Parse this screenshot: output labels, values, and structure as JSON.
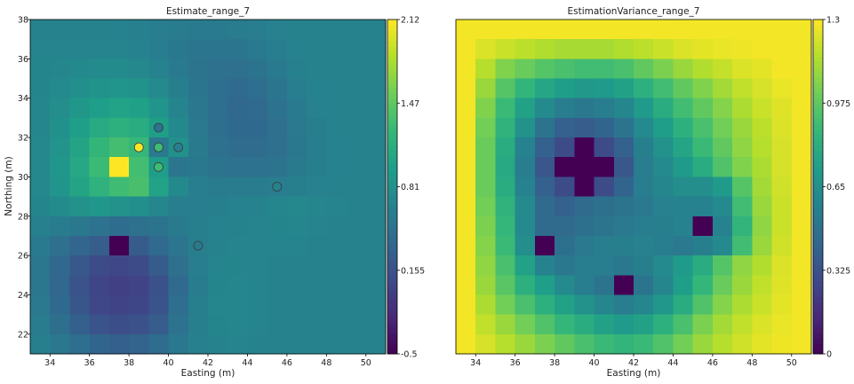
{
  "chart_data": [
    {
      "type": "heatmap",
      "title": "Estimate_range_7",
      "xlabel": "Easting (m)",
      "ylabel": "Northing (m)",
      "xlim": [
        33,
        51
      ],
      "ylim": [
        21,
        38
      ],
      "x_ticks": [
        "34",
        "36",
        "38",
        "40",
        "42",
        "44",
        "46",
        "48",
        "50"
      ],
      "y_ticks": [
        "22",
        "24",
        "26",
        "28",
        "30",
        "32",
        "34",
        "36",
        "38"
      ],
      "colorbar": {
        "min": -0.5,
        "max": 2.12,
        "ticks": [
          "2.12",
          "1.47",
          "0.81",
          "0.155",
          "-0.5"
        ]
      },
      "grid": {
        "x0": 33,
        "y0": 21,
        "dx": 1,
        "dy": 1,
        "rows_from_top": [
          [
            0.68,
            0.68,
            0.68,
            0.67,
            0.66,
            0.64,
            0.61,
            0.59,
            0.58,
            0.58,
            0.59,
            0.62,
            0.65,
            0.67,
            0.68,
            0.68,
            0.68,
            0.68
          ],
          [
            0.69,
            0.69,
            0.69,
            0.69,
            0.69,
            0.66,
            0.61,
            0.55,
            0.52,
            0.52,
            0.53,
            0.58,
            0.62,
            0.66,
            0.68,
            0.68,
            0.68,
            0.68
          ],
          [
            0.7,
            0.72,
            0.74,
            0.76,
            0.76,
            0.73,
            0.66,
            0.58,
            0.51,
            0.47,
            0.46,
            0.51,
            0.58,
            0.64,
            0.67,
            0.68,
            0.68,
            0.68
          ],
          [
            0.7,
            0.75,
            0.8,
            0.84,
            0.86,
            0.84,
            0.75,
            0.63,
            0.52,
            0.44,
            0.4,
            0.44,
            0.53,
            0.61,
            0.66,
            0.68,
            0.68,
            0.68
          ],
          [
            0.71,
            0.79,
            0.88,
            0.96,
            1.0,
            0.98,
            0.86,
            0.69,
            0.54,
            0.44,
            0.38,
            0.4,
            0.49,
            0.58,
            0.65,
            0.68,
            0.68,
            0.68
          ],
          [
            0.72,
            0.82,
            0.96,
            1.09,
            1.16,
            1.12,
            0.97,
            0.74,
            0.56,
            0.45,
            0.39,
            0.39,
            0.46,
            0.56,
            0.63,
            0.67,
            0.68,
            0.68
          ],
          [
            0.73,
            0.85,
            1.03,
            1.22,
            1.33,
            1.25,
            0.56,
            0.82,
            0.57,
            0.47,
            0.42,
            0.42,
            0.46,
            0.55,
            0.62,
            0.66,
            0.68,
            0.68
          ],
          [
            0.73,
            0.87,
            1.06,
            1.28,
            2.12,
            1.32,
            0.94,
            0.53,
            0.55,
            0.51,
            0.49,
            0.48,
            0.51,
            0.57,
            0.63,
            0.66,
            0.68,
            0.68
          ],
          [
            0.73,
            0.86,
            1.02,
            1.18,
            1.3,
            1.35,
            1.0,
            0.74,
            0.62,
            0.59,
            0.59,
            0.6,
            0.61,
            0.63,
            0.65,
            0.67,
            0.68,
            0.68
          ],
          [
            0.7,
            0.76,
            0.83,
            0.87,
            0.83,
            0.8,
            0.71,
            0.62,
            0.61,
            0.63,
            0.66,
            0.68,
            0.71,
            0.73,
            0.71,
            0.69,
            0.68,
            0.68
          ],
          [
            0.64,
            0.6,
            0.55,
            0.49,
            0.43,
            0.47,
            0.5,
            0.57,
            0.63,
            0.66,
            0.68,
            0.69,
            0.7,
            0.71,
            0.69,
            0.68,
            0.68,
            0.68
          ],
          [
            0.58,
            0.46,
            0.35,
            0.27,
            -0.5,
            0.26,
            0.4,
            0.53,
            0.63,
            0.68,
            0.69,
            0.69,
            0.69,
            0.69,
            0.68,
            0.68,
            0.68,
            0.68
          ],
          [
            0.54,
            0.38,
            0.22,
            0.1,
            0.06,
            0.1,
            0.26,
            0.46,
            0.62,
            0.69,
            0.7,
            0.69,
            0.68,
            0.68,
            0.68,
            0.68,
            0.68,
            0.68
          ],
          [
            0.54,
            0.36,
            0.17,
            0.04,
            0.0,
            0.03,
            0.15,
            0.4,
            0.6,
            0.7,
            0.71,
            0.69,
            0.68,
            0.68,
            0.68,
            0.68,
            0.68,
            0.68
          ],
          [
            0.56,
            0.39,
            0.2,
            0.06,
            0.02,
            0.05,
            0.17,
            0.44,
            0.63,
            0.71,
            0.72,
            0.69,
            0.68,
            0.68,
            0.68,
            0.68,
            0.68,
            0.68
          ],
          [
            0.59,
            0.45,
            0.3,
            0.17,
            0.12,
            0.15,
            0.27,
            0.49,
            0.63,
            0.7,
            0.71,
            0.69,
            0.68,
            0.68,
            0.68,
            0.68,
            0.68,
            0.68
          ],
          [
            0.63,
            0.54,
            0.44,
            0.34,
            0.3,
            0.33,
            0.42,
            0.55,
            0.64,
            0.68,
            0.69,
            0.68,
            0.68,
            0.68,
            0.68,
            0.68,
            0.68,
            0.68
          ]
        ]
      },
      "sample_points": [
        {
          "x": 38.5,
          "y": 31.5,
          "value": 2.12
        },
        {
          "x": 39.5,
          "y": 32.5,
          "value": 0.5
        },
        {
          "x": 39.5,
          "y": 31.5,
          "value": 1.3
        },
        {
          "x": 39.5,
          "y": 30.5,
          "value": 1.3
        },
        {
          "x": 40.5,
          "y": 31.5,
          "value": 0.62
        },
        {
          "x": 45.5,
          "y": 29.5,
          "value": 0.66
        },
        {
          "x": 41.5,
          "y": 26.5,
          "value": 0.56
        }
      ]
    },
    {
      "type": "heatmap",
      "title": "EstimationVariance_range_7",
      "xlabel": "Easting (m)",
      "ylabel": "",
      "xlim": [
        33,
        51
      ],
      "ylim": [
        21,
        38
      ],
      "x_ticks": [
        "34",
        "36",
        "38",
        "40",
        "42",
        "44",
        "46",
        "48",
        "50"
      ],
      "colorbar": {
        "min": 0,
        "max": 1.3,
        "ticks": [
          "1.3",
          "0.975",
          "0.65",
          "0.325",
          "0"
        ]
      },
      "grid": {
        "x0": 33,
        "y0": 21,
        "dx": 1,
        "dy": 1,
        "rows_from_top": [
          [
            1.28,
            1.28,
            1.28,
            1.28,
            1.28,
            1.28,
            1.28,
            1.28,
            1.28,
            1.28,
            1.28,
            1.28,
            1.28,
            1.28,
            1.28,
            1.28,
            1.28,
            1.28
          ],
          [
            1.28,
            1.23,
            1.2,
            1.17,
            1.15,
            1.13,
            1.13,
            1.13,
            1.15,
            1.17,
            1.2,
            1.23,
            1.25,
            1.26,
            1.27,
            1.28,
            1.28,
            1.28
          ],
          [
            1.28,
            1.16,
            1.05,
            1.0,
            0.95,
            0.92,
            0.9,
            0.9,
            0.92,
            0.98,
            1.04,
            1.1,
            1.15,
            1.19,
            1.23,
            1.25,
            1.28,
            1.28
          ],
          [
            1.28,
            1.1,
            0.95,
            0.85,
            0.77,
            0.72,
            0.69,
            0.7,
            0.74,
            0.82,
            0.9,
            0.98,
            1.05,
            1.12,
            1.18,
            1.22,
            1.26,
            1.28
          ],
          [
            1.28,
            1.05,
            0.88,
            0.74,
            0.62,
            0.55,
            0.52,
            0.55,
            0.6,
            0.7,
            0.8,
            0.9,
            0.98,
            1.06,
            1.14,
            1.2,
            1.24,
            1.28
          ],
          [
            1.28,
            1.02,
            0.84,
            0.66,
            0.5,
            0.4,
            0.38,
            0.42,
            0.5,
            0.62,
            0.72,
            0.82,
            0.92,
            1.02,
            1.1,
            1.17,
            1.23,
            1.28
          ],
          [
            1.28,
            1.0,
            0.8,
            0.58,
            0.4,
            0.3,
            0.0,
            0.3,
            0.4,
            0.56,
            0.66,
            0.76,
            0.88,
            0.98,
            1.08,
            1.16,
            1.22,
            1.28
          ],
          [
            1.28,
            1.0,
            0.78,
            0.55,
            0.35,
            0.0,
            0.0,
            0.0,
            0.35,
            0.55,
            0.62,
            0.7,
            0.8,
            0.94,
            1.05,
            1.14,
            1.22,
            1.28
          ],
          [
            1.28,
            1.0,
            0.8,
            0.58,
            0.4,
            0.3,
            0.0,
            0.3,
            0.42,
            0.55,
            0.6,
            0.64,
            0.64,
            0.7,
            0.95,
            1.12,
            1.21,
            1.28
          ],
          [
            1.28,
            1.02,
            0.84,
            0.62,
            0.45,
            0.4,
            0.45,
            0.48,
            0.5,
            0.53,
            0.57,
            0.58,
            0.58,
            0.62,
            0.9,
            1.1,
            1.2,
            1.28
          ],
          [
            1.28,
            1.04,
            0.86,
            0.62,
            0.45,
            0.45,
            0.48,
            0.5,
            0.53,
            0.55,
            0.56,
            0.58,
            0.0,
            0.58,
            0.85,
            1.08,
            1.2,
            1.28
          ],
          [
            1.28,
            1.06,
            0.88,
            0.64,
            0.0,
            0.48,
            0.53,
            0.55,
            0.56,
            0.57,
            0.55,
            0.53,
            0.56,
            0.62,
            0.9,
            1.1,
            1.21,
            1.28
          ],
          [
            1.28,
            1.08,
            0.92,
            0.74,
            0.58,
            0.52,
            0.55,
            0.55,
            0.52,
            0.56,
            0.62,
            0.7,
            0.8,
            0.95,
            1.08,
            1.15,
            1.23,
            1.28
          ],
          [
            1.28,
            1.1,
            0.96,
            0.82,
            0.72,
            0.62,
            0.55,
            0.5,
            0.0,
            0.5,
            0.6,
            0.72,
            0.86,
            1.0,
            1.1,
            1.18,
            1.24,
            1.28
          ],
          [
            1.28,
            1.14,
            1.02,
            0.92,
            0.82,
            0.74,
            0.66,
            0.6,
            0.55,
            0.6,
            0.68,
            0.8,
            0.94,
            1.06,
            1.14,
            1.2,
            1.25,
            1.28
          ],
          [
            1.28,
            1.18,
            1.1,
            1.02,
            0.94,
            0.86,
            0.8,
            0.74,
            0.7,
            0.74,
            0.82,
            0.92,
            1.04,
            1.12,
            1.18,
            1.23,
            1.26,
            1.28
          ],
          [
            1.28,
            1.22,
            1.16,
            1.1,
            1.04,
            0.98,
            0.92,
            0.88,
            0.85,
            0.88,
            0.94,
            1.02,
            1.1,
            1.16,
            1.21,
            1.25,
            1.27,
            1.28
          ]
        ]
      }
    }
  ]
}
